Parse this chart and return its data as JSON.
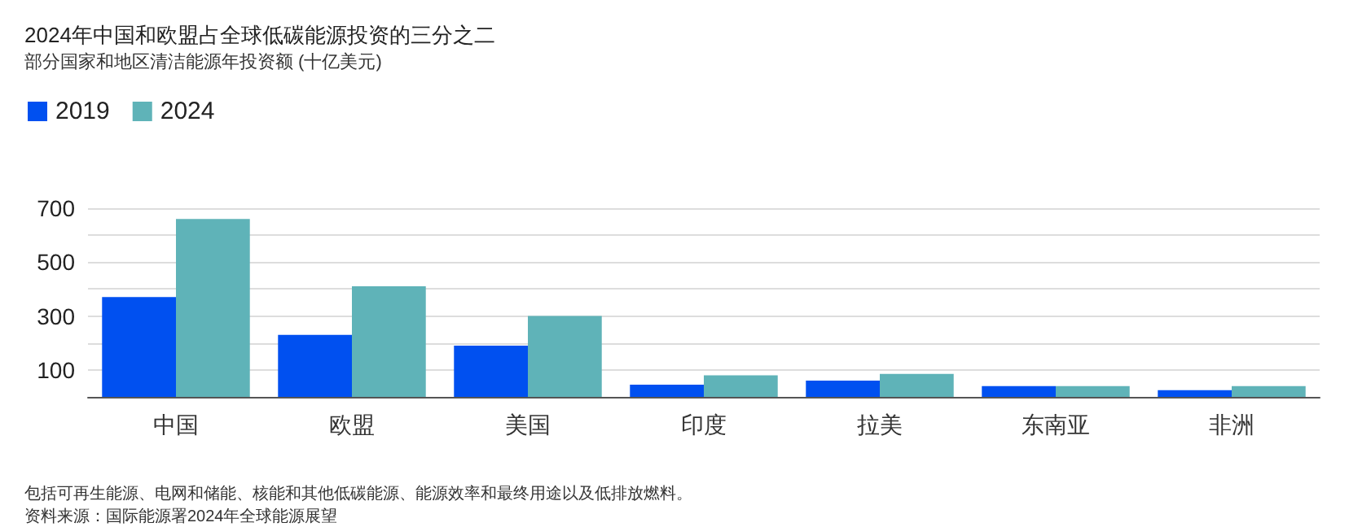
{
  "chart_data": {
    "type": "bar",
    "title": "2024年中国和欧盟占全球低碳能源投资的三分之二",
    "subtitle": "部分国家和地区清洁能源年投资额 (十亿美元)",
    "categories": [
      "中国",
      "欧盟",
      "美国",
      "印度",
      "拉美",
      "东南亚",
      "非洲"
    ],
    "series": [
      {
        "name": "2019",
        "color": "#0050f0",
        "values": [
          370,
          230,
          190,
          45,
          60,
          40,
          25
        ]
      },
      {
        "name": "2024",
        "color": "#5fb3b8",
        "values": [
          660,
          410,
          300,
          80,
          85,
          40,
          40
        ]
      }
    ],
    "ylim": [
      0,
      700
    ],
    "yticks": [
      {
        "value": 100,
        "label": "100"
      },
      {
        "value": 200,
        "label": null
      },
      {
        "value": 300,
        "label": "300"
      },
      {
        "value": 400,
        "label": null
      },
      {
        "value": 500,
        "label": "500"
      },
      {
        "value": 600,
        "label": null
      },
      {
        "value": 700,
        "label": "700"
      }
    ],
    "grid": "y",
    "legend": "top left",
    "annotations": [
      "包括可再生能源、电网和储能、核能和其他低碳能源、能源效率和最终用途以及低排放燃料。",
      "资料来源：国际能源署2024年全球能源展望"
    ]
  }
}
